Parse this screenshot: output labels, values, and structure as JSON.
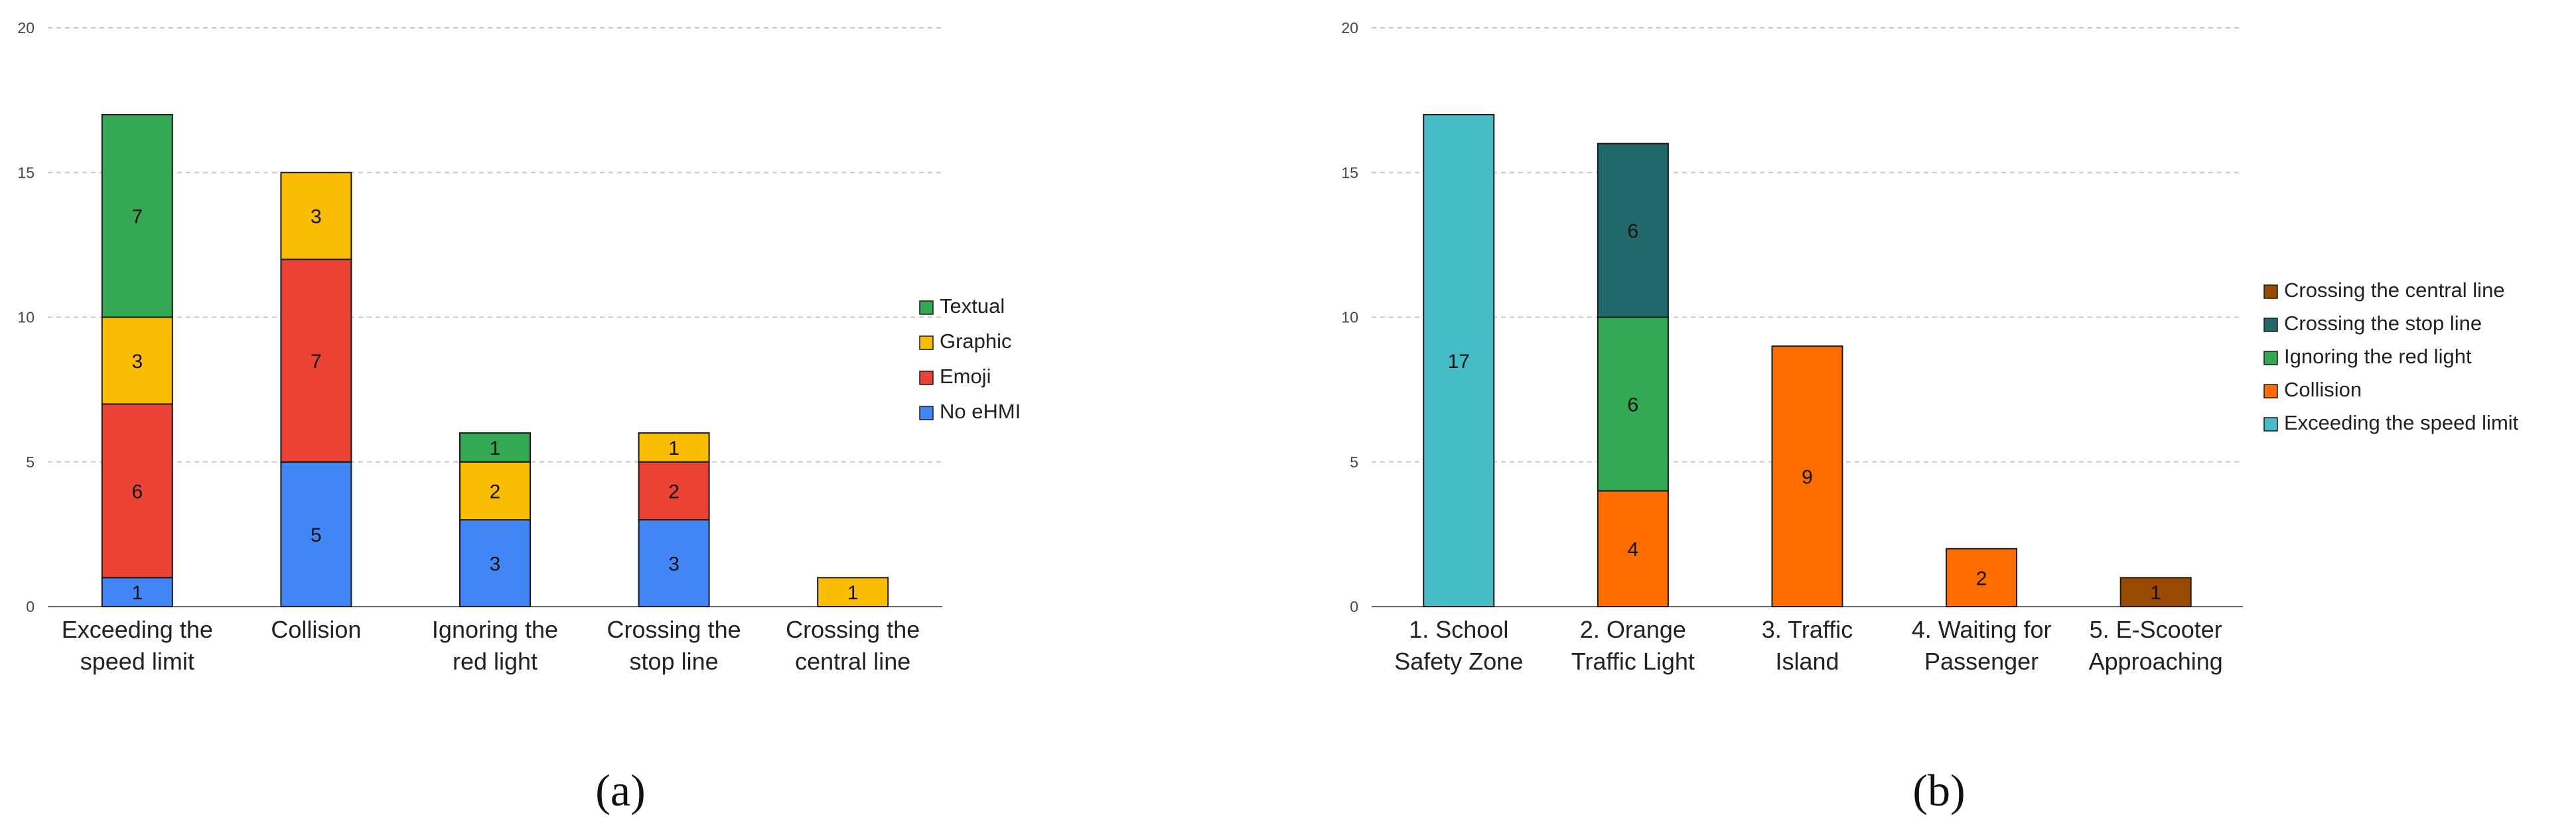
{
  "colors": {
    "Textual": "#34a853",
    "Graphic": "#fbbc04",
    "Emoji": "#ea4335",
    "No eHMI": "#4285f4",
    "Crossing the central line": "#994a00",
    "Crossing the stop line": "#22686b",
    "Ignoring the red light": "#34a853",
    "Collision": "#ff6d01",
    "Exceeding the speed limit": "#46bdc6"
  },
  "chart_data": [
    {
      "type": "bar",
      "stacked": true,
      "panel_label": "(a)",
      "categories": [
        [
          "Exceeding the",
          "speed limit"
        ],
        [
          "Collision"
        ],
        [
          "Ignoring the",
          "red light"
        ],
        [
          "Crossing the",
          "stop line"
        ],
        [
          "Crossing the",
          "central line"
        ]
      ],
      "series": [
        {
          "name": "No eHMI",
          "values": [
            1,
            5,
            3,
            3,
            0
          ]
        },
        {
          "name": "Emoji",
          "values": [
            6,
            7,
            0,
            2,
            0
          ]
        },
        {
          "name": "Graphic",
          "values": [
            3,
            3,
            2,
            1,
            1
          ]
        },
        {
          "name": "Textual",
          "values": [
            7,
            0,
            1,
            0,
            0
          ]
        }
      ],
      "legend": [
        "Textual",
        "Graphic",
        "Emoji",
        "No eHMI"
      ],
      "yticks": [
        "0",
        "5",
        "10",
        "15",
        "20"
      ],
      "ylim": [
        0,
        20
      ],
      "grid": true,
      "legend_position": "right"
    },
    {
      "type": "bar",
      "stacked": true,
      "panel_label": "(b)",
      "categories": [
        [
          "1. School",
          "Safety Zone"
        ],
        [
          "2. Orange",
          "Traffic Light"
        ],
        [
          "3. Traffic",
          "Island"
        ],
        [
          "4. Waiting for",
          "Passenger"
        ],
        [
          "5. E-Scooter",
          "Approaching"
        ]
      ],
      "series": [
        {
          "name": "Exceeding the speed limit",
          "values": [
            17,
            0,
            0,
            0,
            0
          ]
        },
        {
          "name": "Collision",
          "values": [
            0,
            4,
            9,
            2,
            0
          ]
        },
        {
          "name": "Ignoring the red light",
          "values": [
            0,
            6,
            0,
            0,
            0
          ]
        },
        {
          "name": "Crossing the stop line",
          "values": [
            0,
            6,
            0,
            0,
            0
          ]
        },
        {
          "name": "Crossing the central line",
          "values": [
            0,
            0,
            0,
            0,
            1
          ]
        }
      ],
      "legend": [
        "Crossing the central line",
        "Crossing the stop line",
        "Ignoring the red light",
        "Collision",
        "Exceeding the speed limit"
      ],
      "yticks": [
        "0",
        "5",
        "10",
        "15",
        "20"
      ],
      "ylim": [
        0,
        20
      ],
      "grid": true,
      "legend_position": "right"
    }
  ]
}
